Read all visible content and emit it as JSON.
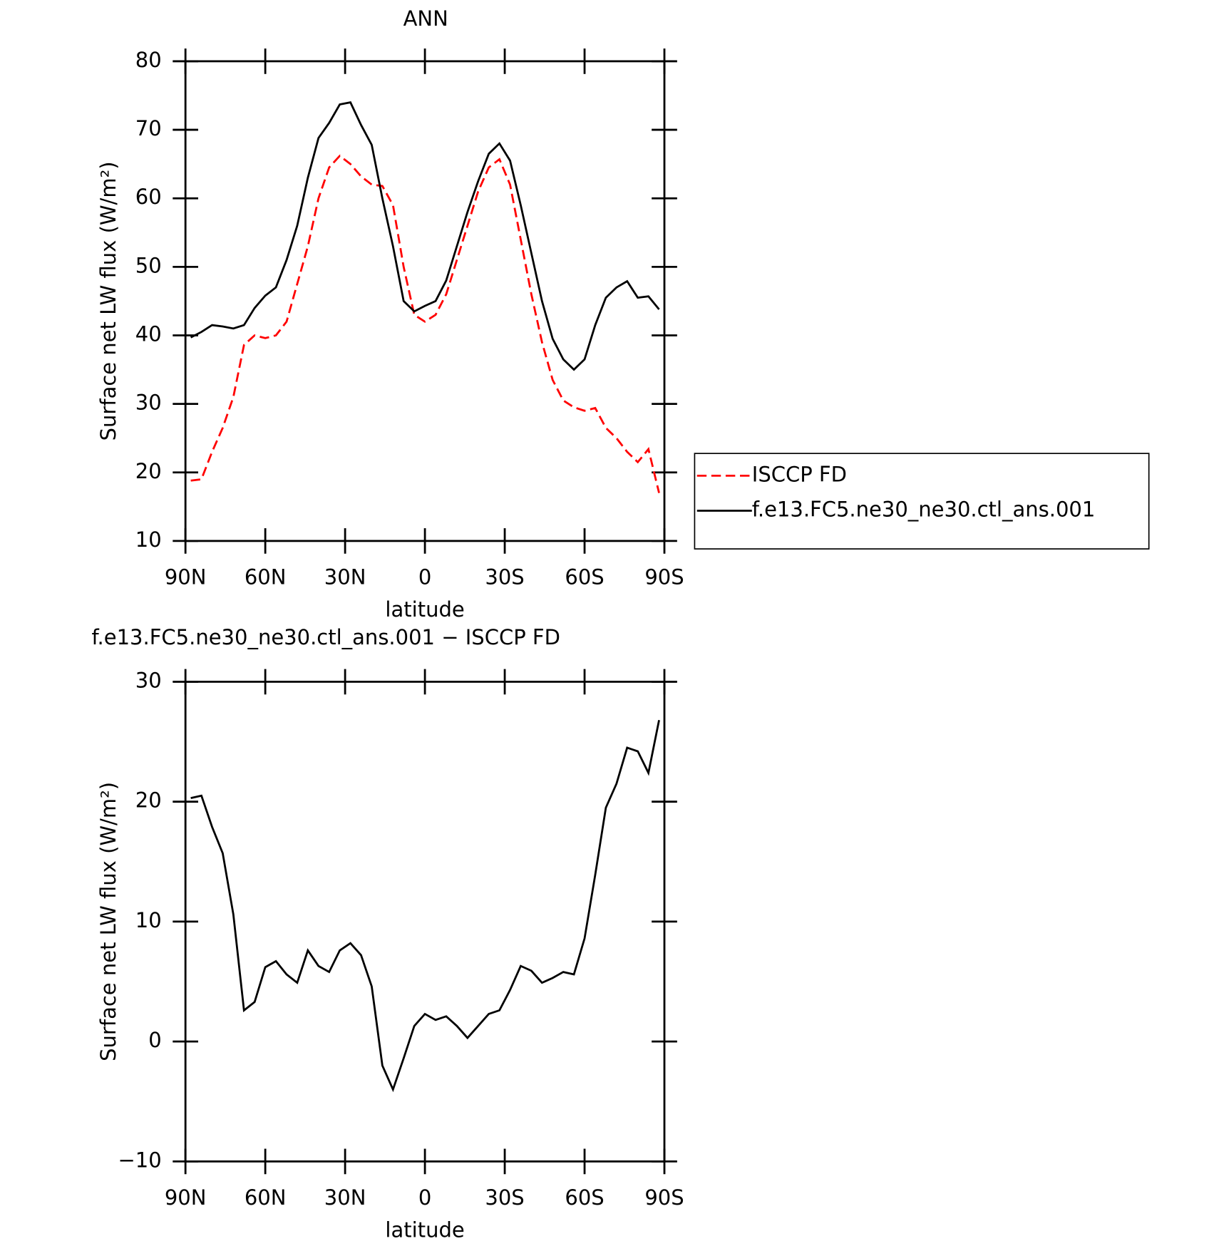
{
  "chart_data": [
    {
      "type": "line",
      "title": "ANN",
      "xlabel": "latitude",
      "ylabel": "Surface net LW flux (W/m²)",
      "x": [
        88,
        84,
        80,
        76,
        72,
        68,
        64,
        60,
        56,
        52,
        48,
        44,
        40,
        36,
        32,
        28,
        24,
        20,
        16,
        12,
        8,
        4,
        0,
        -4,
        -8,
        -12,
        -16,
        -20,
        -24,
        -28,
        -32,
        -36,
        -40,
        -44,
        -48,
        -52,
        -56,
        -60,
        -64,
        -68,
        -72,
        -76,
        -80,
        -84,
        -88
      ],
      "series": [
        {
          "name": "ISCCP FD",
          "color": "#ff0000",
          "style": "dashed",
          "values": [
            18.8,
            19.0,
            23,
            26.5,
            31,
            38.6,
            40,
            39.6,
            40,
            42,
            47.5,
            53,
            60,
            64.5,
            66.2,
            65,
            63.2,
            62,
            61.8,
            59,
            50,
            43,
            42,
            43,
            46,
            51,
            56,
            61,
            64.5,
            65.7,
            62,
            54,
            46,
            39,
            33.5,
            30.5,
            29.5,
            29,
            29.4,
            26.5,
            25,
            23,
            21.5,
            23.4,
            17
          ]
        },
        {
          "name": "f.e13.FC5.ne30_ne30.ctl_ans.001",
          "color": "#000000",
          "style": "solid",
          "values": [
            39.7,
            40.5,
            41.5,
            41.3,
            41.0,
            41.5,
            44,
            45.8,
            47,
            51,
            56,
            63,
            68.8,
            71,
            73.7,
            74,
            70.7,
            67.8,
            60,
            53,
            45,
            43.5,
            44.3,
            45,
            48,
            53,
            58,
            62.5,
            66.5,
            68,
            65.5,
            59,
            52,
            45,
            39.5,
            36.5,
            35,
            36.5,
            41.5,
            45.5,
            47,
            47.9,
            45.5,
            45.7,
            43.8
          ]
        }
      ],
      "xlim": [
        90,
        -90
      ],
      "xticks": [
        {
          "value": 90,
          "label": "90N"
        },
        {
          "value": 60,
          "label": "60N"
        },
        {
          "value": 30,
          "label": "30N"
        },
        0,
        {
          "value": -30,
          "label": "30S"
        },
        {
          "value": -60,
          "label": "60S"
        },
        {
          "value": -90,
          "label": "90S"
        }
      ],
      "ylim": [
        10,
        80
      ],
      "yticks": [
        10,
        20,
        30,
        40,
        50,
        60,
        70,
        80
      ],
      "legend": "right"
    },
    {
      "type": "line",
      "title": "f.e13.FC5.ne30_ne30.ctl_ans.001 − ISCCP FD",
      "xlabel": "latitude",
      "ylabel": "Surface net LW flux (W/m²)",
      "x": [
        88,
        84,
        80,
        76,
        72,
        68,
        64,
        60,
        56,
        52,
        48,
        44,
        40,
        36,
        32,
        28,
        24,
        20,
        16,
        12,
        8,
        4,
        0,
        -4,
        -8,
        -12,
        -16,
        -20,
        -24,
        -28,
        -32,
        -36,
        -40,
        -44,
        -48,
        -52,
        -56,
        -60,
        -64,
        -68,
        -72,
        -76,
        -80,
        -84,
        -88
      ],
      "series": [
        {
          "color": "#000000",
          "style": "solid",
          "values": [
            20.3,
            20.5,
            17.9,
            15.7,
            10.6,
            2.6,
            3.3,
            6.2,
            6.7,
            5.6,
            4.9,
            7.6,
            6.3,
            5.8,
            7.6,
            8.2,
            7.2,
            4.6,
            -2,
            -4,
            -1.4,
            1.3,
            2.3,
            1.8,
            2.1,
            1.3,
            0.3,
            1.3,
            2.3,
            2.6,
            4.3,
            6.3,
            5.9,
            4.9,
            5.3,
            5.8,
            5.6,
            8.6,
            13.9,
            19.5,
            21.5,
            24.5,
            24.2,
            22.4,
            26.8
          ]
        }
      ],
      "xlim": [
        90,
        -90
      ],
      "xticks": [
        {
          "value": 90,
          "label": "90N"
        },
        {
          "value": 60,
          "label": "60N"
        },
        {
          "value": 30,
          "label": "30N"
        },
        0,
        {
          "value": -30,
          "label": "30S"
        },
        {
          "value": -60,
          "label": "60S"
        },
        {
          "value": -90,
          "label": "90S"
        }
      ],
      "ylim": [
        -10,
        30
      ],
      "yticks": [
        {
          "value": -10,
          "label": "−10"
        },
        0,
        10,
        20,
        30
      ]
    }
  ]
}
